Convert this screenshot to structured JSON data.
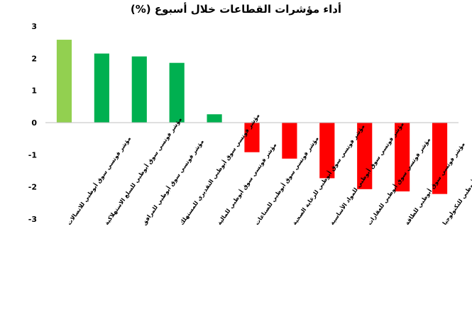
{
  "chart_data": {
    "type": "bar",
    "title": "أداء مؤشرات القطاعات خلال أسبوع (%)",
    "categories": [
      "مؤشر فوتسي سوق أبوظبي للاتصالات",
      "مؤشر فوتسي سوق أبوظبي للسلع الاستهلاكية",
      "مؤشر فوتسي سوق أبوظبي للمرافق",
      "مؤشر فوتسي سوق أبوظبي التقديري للمستهلك",
      "مؤشر فوتسي سوق أبوظبي للمالية",
      "مؤشر فوتسي سوق أبوظبي للصناعات",
      "مؤشر فوتسي سوق أبوظبي للرعاية الصحية",
      "مؤشر فوتسي سوق أبوظبي للمواد الأساسية",
      "مؤشر فوتسي سوق أبوظبي للعقارات",
      "مؤشر فوتسي سوق أبوظبي للطاقة",
      "مؤشر فوتسي سوق أبوظبي للتكنولوجيا"
    ],
    "values": [
      2.58,
      2.15,
      2.06,
      1.86,
      0.26,
      -0.92,
      -1.12,
      -1.73,
      -2.07,
      -2.14,
      -2.22
    ],
    "colors": [
      "#92d050",
      "#00b050",
      "#00b050",
      "#00b050",
      "#00b050",
      "#ff0000",
      "#ff0000",
      "#ff0000",
      "#ff0000",
      "#ff0000",
      "#ff0000"
    ],
    "ylim": [
      -3,
      3
    ],
    "yticks": [
      3,
      2,
      1,
      0,
      -1,
      -2,
      -3
    ],
    "xlabel": "",
    "ylabel": "",
    "grid": false
  }
}
